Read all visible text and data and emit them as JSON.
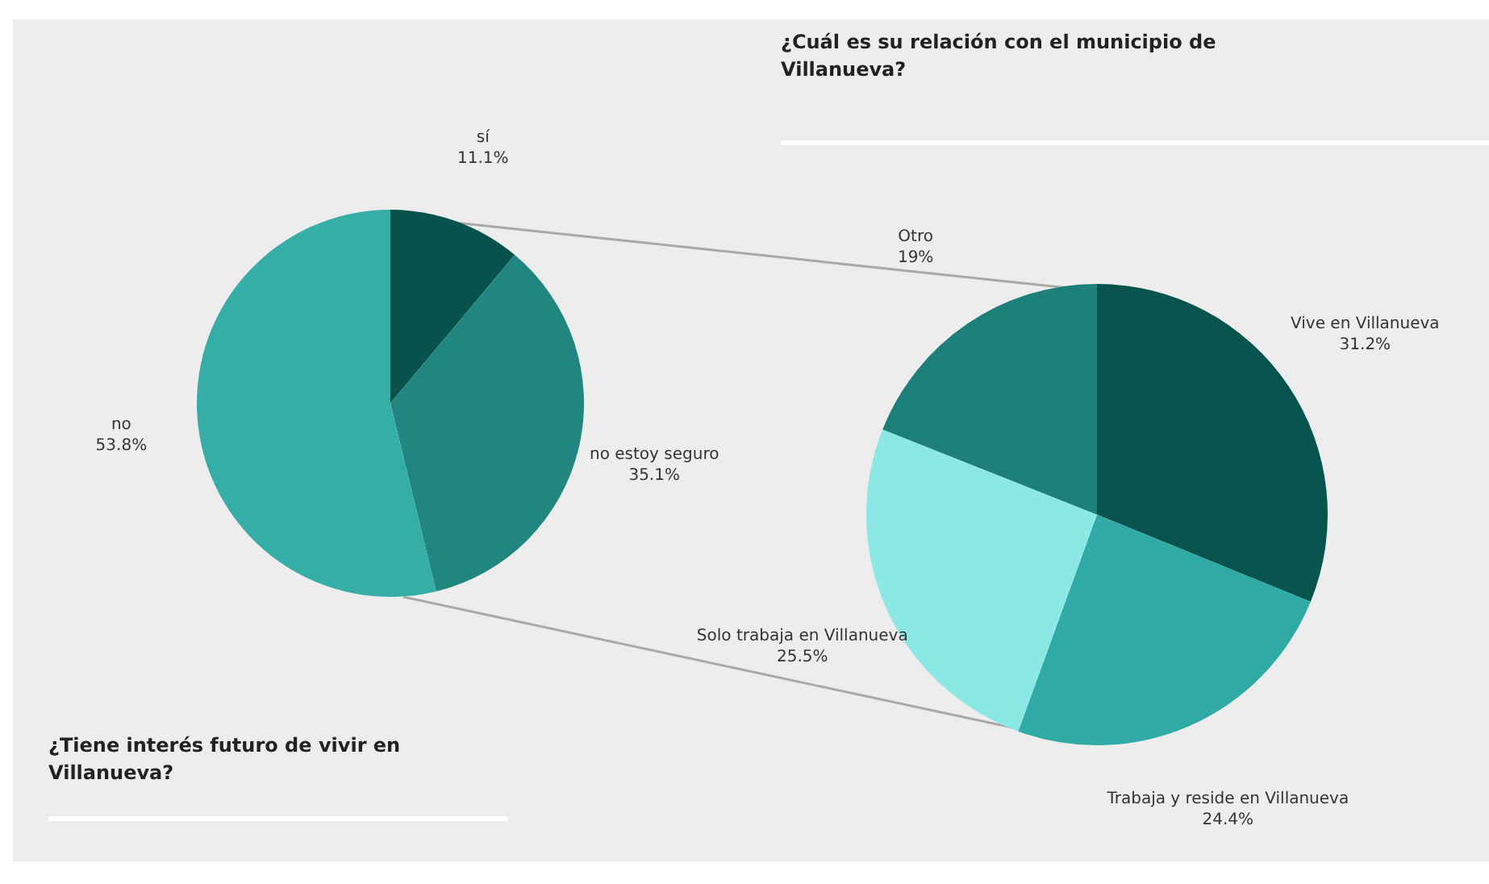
{
  "chart_data": [
    {
      "type": "pie",
      "title": "¿Tiene interés futuro de vivir en Villanueva?",
      "categories": [
        "sí",
        "no estoy seguro",
        "no"
      ],
      "values": [
        11.1,
        35.1,
        53.8
      ],
      "colors": [
        "#07524d",
        "#21867f",
        "#35aea8"
      ],
      "value_labels": [
        "11.1%",
        "35.1%",
        "53.8%"
      ],
      "legend": false
    },
    {
      "type": "pie",
      "title": "¿Cuál es su relación con el municipio de Villanueva?",
      "categories": [
        "Vive en Villanueva",
        "Trabaja y reside en Villanueva",
        "Solo trabaja en Villanueva",
        "Otro"
      ],
      "values": [
        31.2,
        24.4,
        25.5,
        19
      ],
      "colors": [
        "#07534e",
        "#30aaa4",
        "#8ce8e5",
        "#1d7f7a"
      ],
      "value_labels": [
        "31.2%",
        "24.4%",
        "25.5%",
        "19%"
      ],
      "legend": false
    }
  ]
}
